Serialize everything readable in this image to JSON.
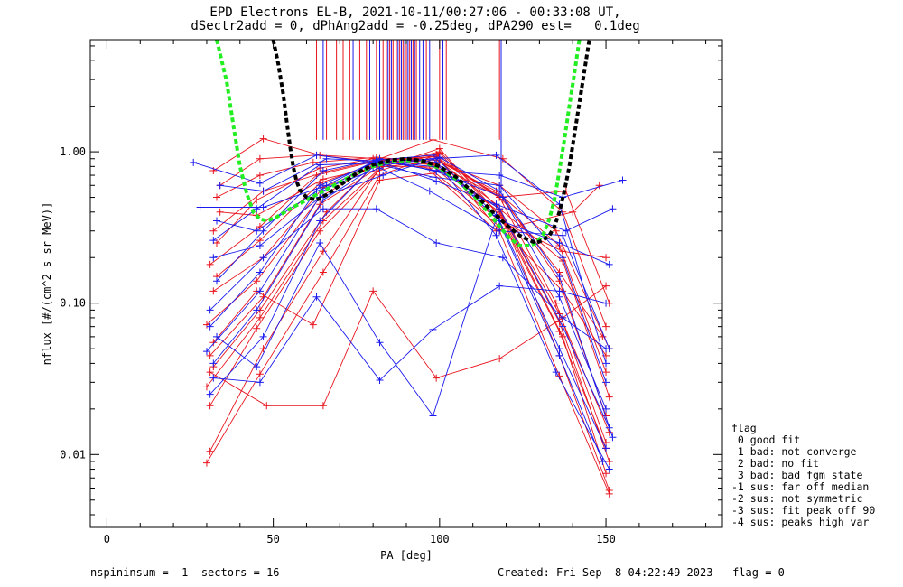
{
  "title": {
    "line1": "EPD Electrons EL-B, 2021-10-11/00:27:06 - 00:33:08 UT,",
    "line2": "dSectr2add = 0, dPhAng2add = -0.25deg, dPA290_est=   0.1deg"
  },
  "footer": {
    "left": "nspininsum =  1  sectors = 16",
    "right": "Created: Fri Sep  8 04:22:49 2023   flag = 0"
  },
  "legend": {
    "title": "flag",
    "items": [
      " 0 good fit",
      " 1 bad: not converge",
      " 2 bad: no fit",
      " 3 bad: bad fgm state",
      "-1 sus: far off median",
      "-2 sus: not symmetric",
      "-3 sus: fit peak off 90",
      "-4 sus: peaks high var"
    ]
  },
  "colors": {
    "red": "#e8141e",
    "blue": "#1a1aee",
    "green_fit": "#22ee22",
    "black_fit": "#000000"
  },
  "chart_data": {
    "type": "line",
    "xlabel": "PA [deg]",
    "ylabel": "nflux [#/(cm^2 s sr MeV)]",
    "xlim": [
      -5,
      185
    ],
    "ylim": [
      0.0033,
      5.5
    ],
    "yscale": "log",
    "xticks": [
      0,
      50,
      100,
      150
    ],
    "yticks": [
      0.01,
      0.1,
      1.0
    ],
    "ytick_labels": [
      "0.01",
      "0.10",
      "1.00"
    ],
    "grid": false,
    "series": [
      {
        "color": "red",
        "x": [
          30,
          46,
          65,
          82,
          99,
          118,
          136,
          151
        ],
        "y": [
          0.0088,
          0.034,
          0.16,
          0.7,
          0.95,
          0.3,
          0.033,
          0.0055
        ]
      },
      {
        "color": "red",
        "x": [
          31,
          47,
          65,
          82,
          100,
          119,
          136,
          151
        ],
        "y": [
          0.0105,
          0.05,
          0.22,
          0.78,
          1.05,
          0.36,
          0.045,
          0.0058
        ]
      },
      {
        "color": "red",
        "x": [
          31,
          45,
          64,
          83,
          98,
          118,
          137,
          150
        ],
        "y": [
          0.021,
          0.068,
          0.3,
          0.8,
          0.85,
          0.4,
          0.06,
          0.0075
        ]
      },
      {
        "color": "red",
        "x": [
          32,
          46,
          66,
          81,
          98,
          117,
          136,
          151
        ],
        "y": [
          0.038,
          0.09,
          0.4,
          0.84,
          0.93,
          0.45,
          0.075,
          0.009
        ]
      },
      {
        "color": "red",
        "x": [
          30,
          45,
          64,
          82,
          99,
          118,
          135,
          150
        ],
        "y": [
          0.072,
          0.14,
          0.5,
          0.86,
          0.96,
          0.5,
          0.1,
          0.012
        ]
      },
      {
        "color": "red",
        "x": [
          32,
          47,
          65,
          83,
          99,
          119,
          136,
          150
        ],
        "y": [
          0.12,
          0.2,
          0.58,
          0.85,
          0.9,
          0.5,
          0.14,
          0.018
        ]
      },
      {
        "color": "red",
        "x": [
          31,
          46,
          63,
          82,
          98,
          118,
          137,
          151
        ],
        "y": [
          0.18,
          0.32,
          0.7,
          0.88,
          0.82,
          0.42,
          0.19,
          0.024
        ]
      },
      {
        "color": "red",
        "x": [
          33,
          45,
          64,
          80,
          99,
          117,
          136,
          150
        ],
        "y": [
          0.25,
          0.48,
          0.78,
          0.9,
          0.88,
          0.55,
          0.24,
          0.035
        ]
      },
      {
        "color": "red",
        "x": [
          33,
          46,
          62,
          81,
          100,
          118,
          135,
          151
        ],
        "y": [
          0.5,
          0.7,
          0.85,
          0.92,
          0.85,
          0.6,
          0.3,
          0.05
        ]
      },
      {
        "color": "red",
        "x": [
          32,
          47,
          64,
          82,
          98,
          119,
          137,
          150
        ],
        "y": [
          0.75,
          1.22,
          0.95,
          0.9,
          1.2,
          0.9,
          0.4,
          0.07
        ]
      },
      {
        "color": "red",
        "x": [
          34,
          46,
          63,
          81,
          99,
          118,
          138,
          151
        ],
        "y": [
          0.6,
          0.9,
          0.95,
          0.86,
          0.83,
          0.5,
          0.55,
          0.1
        ]
      },
      {
        "color": "red",
        "x": [
          31,
          48,
          65,
          80,
          99,
          118,
          137,
          150
        ],
        "y": [
          0.035,
          0.021,
          0.021,
          0.12,
          0.032,
          0.043,
          0.08,
          0.13
        ]
      },
      {
        "color": "red",
        "x": [
          32,
          45,
          62,
          82,
          98,
          117,
          140,
          148
        ],
        "y": [
          0.055,
          0.12,
          0.072,
          0.65,
          0.72,
          0.3,
          0.4,
          0.6
        ]
      },
      {
        "color": "red",
        "x": [
          30,
          46,
          65,
          81,
          100,
          118,
          136,
          150
        ],
        "y": [
          0.028,
          0.08,
          0.35,
          0.74,
          0.98,
          0.38,
          0.065,
          0.011
        ]
      },
      {
        "color": "red",
        "x": [
          31,
          47,
          64,
          83,
          100,
          118,
          136,
          151
        ],
        "y": [
          0.045,
          0.11,
          0.45,
          0.82,
          1.0,
          0.42,
          0.085,
          0.014
        ]
      },
      {
        "color": "red",
        "x": [
          33,
          46,
          64,
          82,
          97,
          118,
          137,
          150
        ],
        "y": [
          0.15,
          0.26,
          0.62,
          0.86,
          0.78,
          0.32,
          0.12,
          0.045
        ]
      },
      {
        "color": "red",
        "x": [
          32,
          47,
          66,
          81,
          99,
          119,
          136,
          149
        ],
        "y": [
          0.3,
          0.55,
          0.74,
          0.88,
          0.93,
          0.48,
          0.16,
          0.06
        ]
      },
      {
        "color": "red",
        "x": [
          34,
          45,
          65,
          82,
          98,
          118,
          137,
          150
        ],
        "y": [
          0.4,
          0.38,
          0.66,
          0.8,
          0.8,
          0.35,
          0.22,
          0.2
        ]
      },
      {
        "color": "blue",
        "x": [
          26,
          46,
          63,
          80,
          98,
          117,
          136,
          150
        ],
        "y": [
          0.85,
          0.62,
          0.95,
          0.85,
          0.9,
          0.95,
          0.45,
          0.04
        ]
      },
      {
        "color": "blue",
        "x": [
          28,
          47,
          66,
          81,
          99,
          118,
          137,
          155
        ],
        "y": [
          0.43,
          0.43,
          0.6,
          0.88,
          0.75,
          0.7,
          0.5,
          0.65
        ]
      },
      {
        "color": "blue",
        "x": [
          31,
          47,
          64,
          80,
          98,
          117,
          135,
          151
        ],
        "y": [
          0.025,
          0.06,
          0.35,
          0.8,
          0.9,
          0.28,
          0.035,
          0.008
        ]
      },
      {
        "color": "blue",
        "x": [
          32,
          45,
          65,
          82,
          99,
          118,
          136,
          150
        ],
        "y": [
          0.04,
          0.09,
          0.48,
          0.84,
          0.85,
          0.35,
          0.05,
          0.011
        ]
      },
      {
        "color": "blue",
        "x": [
          31,
          46,
          64,
          81,
          98,
          118,
          137,
          151
        ],
        "y": [
          0.07,
          0.16,
          0.6,
          0.86,
          0.8,
          0.42,
          0.07,
          0.015
        ]
      },
      {
        "color": "blue",
        "x": [
          33,
          47,
          65,
          82,
          99,
          119,
          136,
          150
        ],
        "y": [
          0.14,
          0.3,
          0.75,
          0.9,
          0.74,
          0.5,
          0.11,
          0.02
        ]
      },
      {
        "color": "blue",
        "x": [
          32,
          45,
          64,
          80,
          98,
          118,
          137,
          150
        ],
        "y": [
          0.26,
          0.42,
          0.82,
          0.84,
          0.68,
          0.6,
          0.2,
          0.03
        ]
      },
      {
        "color": "blue",
        "x": [
          34,
          47,
          66,
          81,
          99,
          117,
          138,
          152
        ],
        "y": [
          0.6,
          0.55,
          0.9,
          0.87,
          0.64,
          0.45,
          0.3,
          0.42
        ]
      },
      {
        "color": "blue",
        "x": [
          32,
          46,
          63,
          82,
          98,
          118,
          136,
          150
        ],
        "y": [
          0.032,
          0.03,
          0.11,
          0.031,
          0.067,
          0.13,
          0.12,
          0.1
        ]
      },
      {
        "color": "blue",
        "x": [
          33,
          45,
          64,
          82,
          98,
          117,
          136,
          151
        ],
        "y": [
          0.06,
          0.038,
          0.25,
          0.055,
          0.018,
          0.36,
          0.25,
          0.18
        ]
      },
      {
        "color": "blue",
        "x": [
          31,
          47,
          65,
          81,
          99,
          119,
          137,
          150
        ],
        "y": [
          0.09,
          0.2,
          0.42,
          0.42,
          0.25,
          0.2,
          0.08,
          0.05
        ]
      },
      {
        "color": "blue",
        "x": [
          32,
          46,
          64,
          83,
          100,
          118,
          136,
          152
        ],
        "y": [
          0.2,
          0.24,
          0.5,
          0.7,
          0.92,
          0.55,
          0.15,
          0.013
        ]
      },
      {
        "color": "blue",
        "x": [
          30,
          46,
          65,
          81,
          98,
          117,
          136,
          149
        ],
        "y": [
          0.048,
          0.12,
          0.55,
          0.88,
          0.95,
          0.38,
          0.045,
          0.009
        ]
      },
      {
        "color": "blue",
        "x": [
          33,
          45,
          63,
          82,
          97,
          118,
          137,
          151
        ],
        "y": [
          0.35,
          0.3,
          0.55,
          0.78,
          0.55,
          0.3,
          0.28,
          0.05
        ]
      },
      {
        "color": "green_fit",
        "dashed": true,
        "x": [
          33,
          36,
          38,
          40,
          42,
          44,
          46,
          48,
          51,
          55,
          60,
          65,
          70,
          75,
          80,
          85,
          90,
          95,
          100,
          105,
          110,
          115,
          118,
          121,
          124,
          127,
          129,
          131,
          133,
          134.5,
          136,
          137.5,
          139,
          140.5,
          142
        ],
        "y": [
          5.5,
          2.9,
          1.5,
          0.8,
          0.53,
          0.4,
          0.36,
          0.35,
          0.37,
          0.42,
          0.48,
          0.55,
          0.63,
          0.72,
          0.8,
          0.86,
          0.88,
          0.86,
          0.78,
          0.66,
          0.52,
          0.39,
          0.32,
          0.27,
          0.24,
          0.24,
          0.25,
          0.28,
          0.36,
          0.48,
          0.75,
          1.2,
          2.0,
          3.3,
          5.5
        ]
      },
      {
        "color": "black_fit",
        "dashed": true,
        "x": [
          50,
          51.5,
          53,
          54,
          55,
          56,
          57,
          58,
          60,
          63,
          66,
          70,
          75,
          80,
          85,
          90,
          95,
          100,
          105,
          110,
          115,
          120,
          124,
          127,
          129,
          131,
          133,
          134.5,
          136,
          137.5,
          139,
          140.5,
          142,
          143.5,
          145
        ],
        "y": [
          5.5,
          3.8,
          2.4,
          1.6,
          1.1,
          0.8,
          0.64,
          0.56,
          0.5,
          0.48,
          0.52,
          0.6,
          0.72,
          0.82,
          0.88,
          0.9,
          0.87,
          0.8,
          0.68,
          0.54,
          0.42,
          0.33,
          0.28,
          0.26,
          0.25,
          0.26,
          0.28,
          0.32,
          0.4,
          0.55,
          0.8,
          1.3,
          2.1,
          3.4,
          5.5
        ]
      }
    ],
    "flag_lines": {
      "red_x": [
        63,
        66,
        69,
        71,
        73,
        76,
        78,
        81,
        83,
        84,
        85,
        86,
        87,
        88,
        89,
        90,
        91,
        92,
        93,
        96,
        98,
        100,
        102,
        118
      ],
      "blue_x": [
        65,
        74,
        79,
        82,
        84.5,
        85.5,
        87.5,
        88.5,
        89.5,
        90.5,
        91.5,
        92.5,
        94,
        95,
        97,
        101,
        118.5
      ]
    }
  }
}
